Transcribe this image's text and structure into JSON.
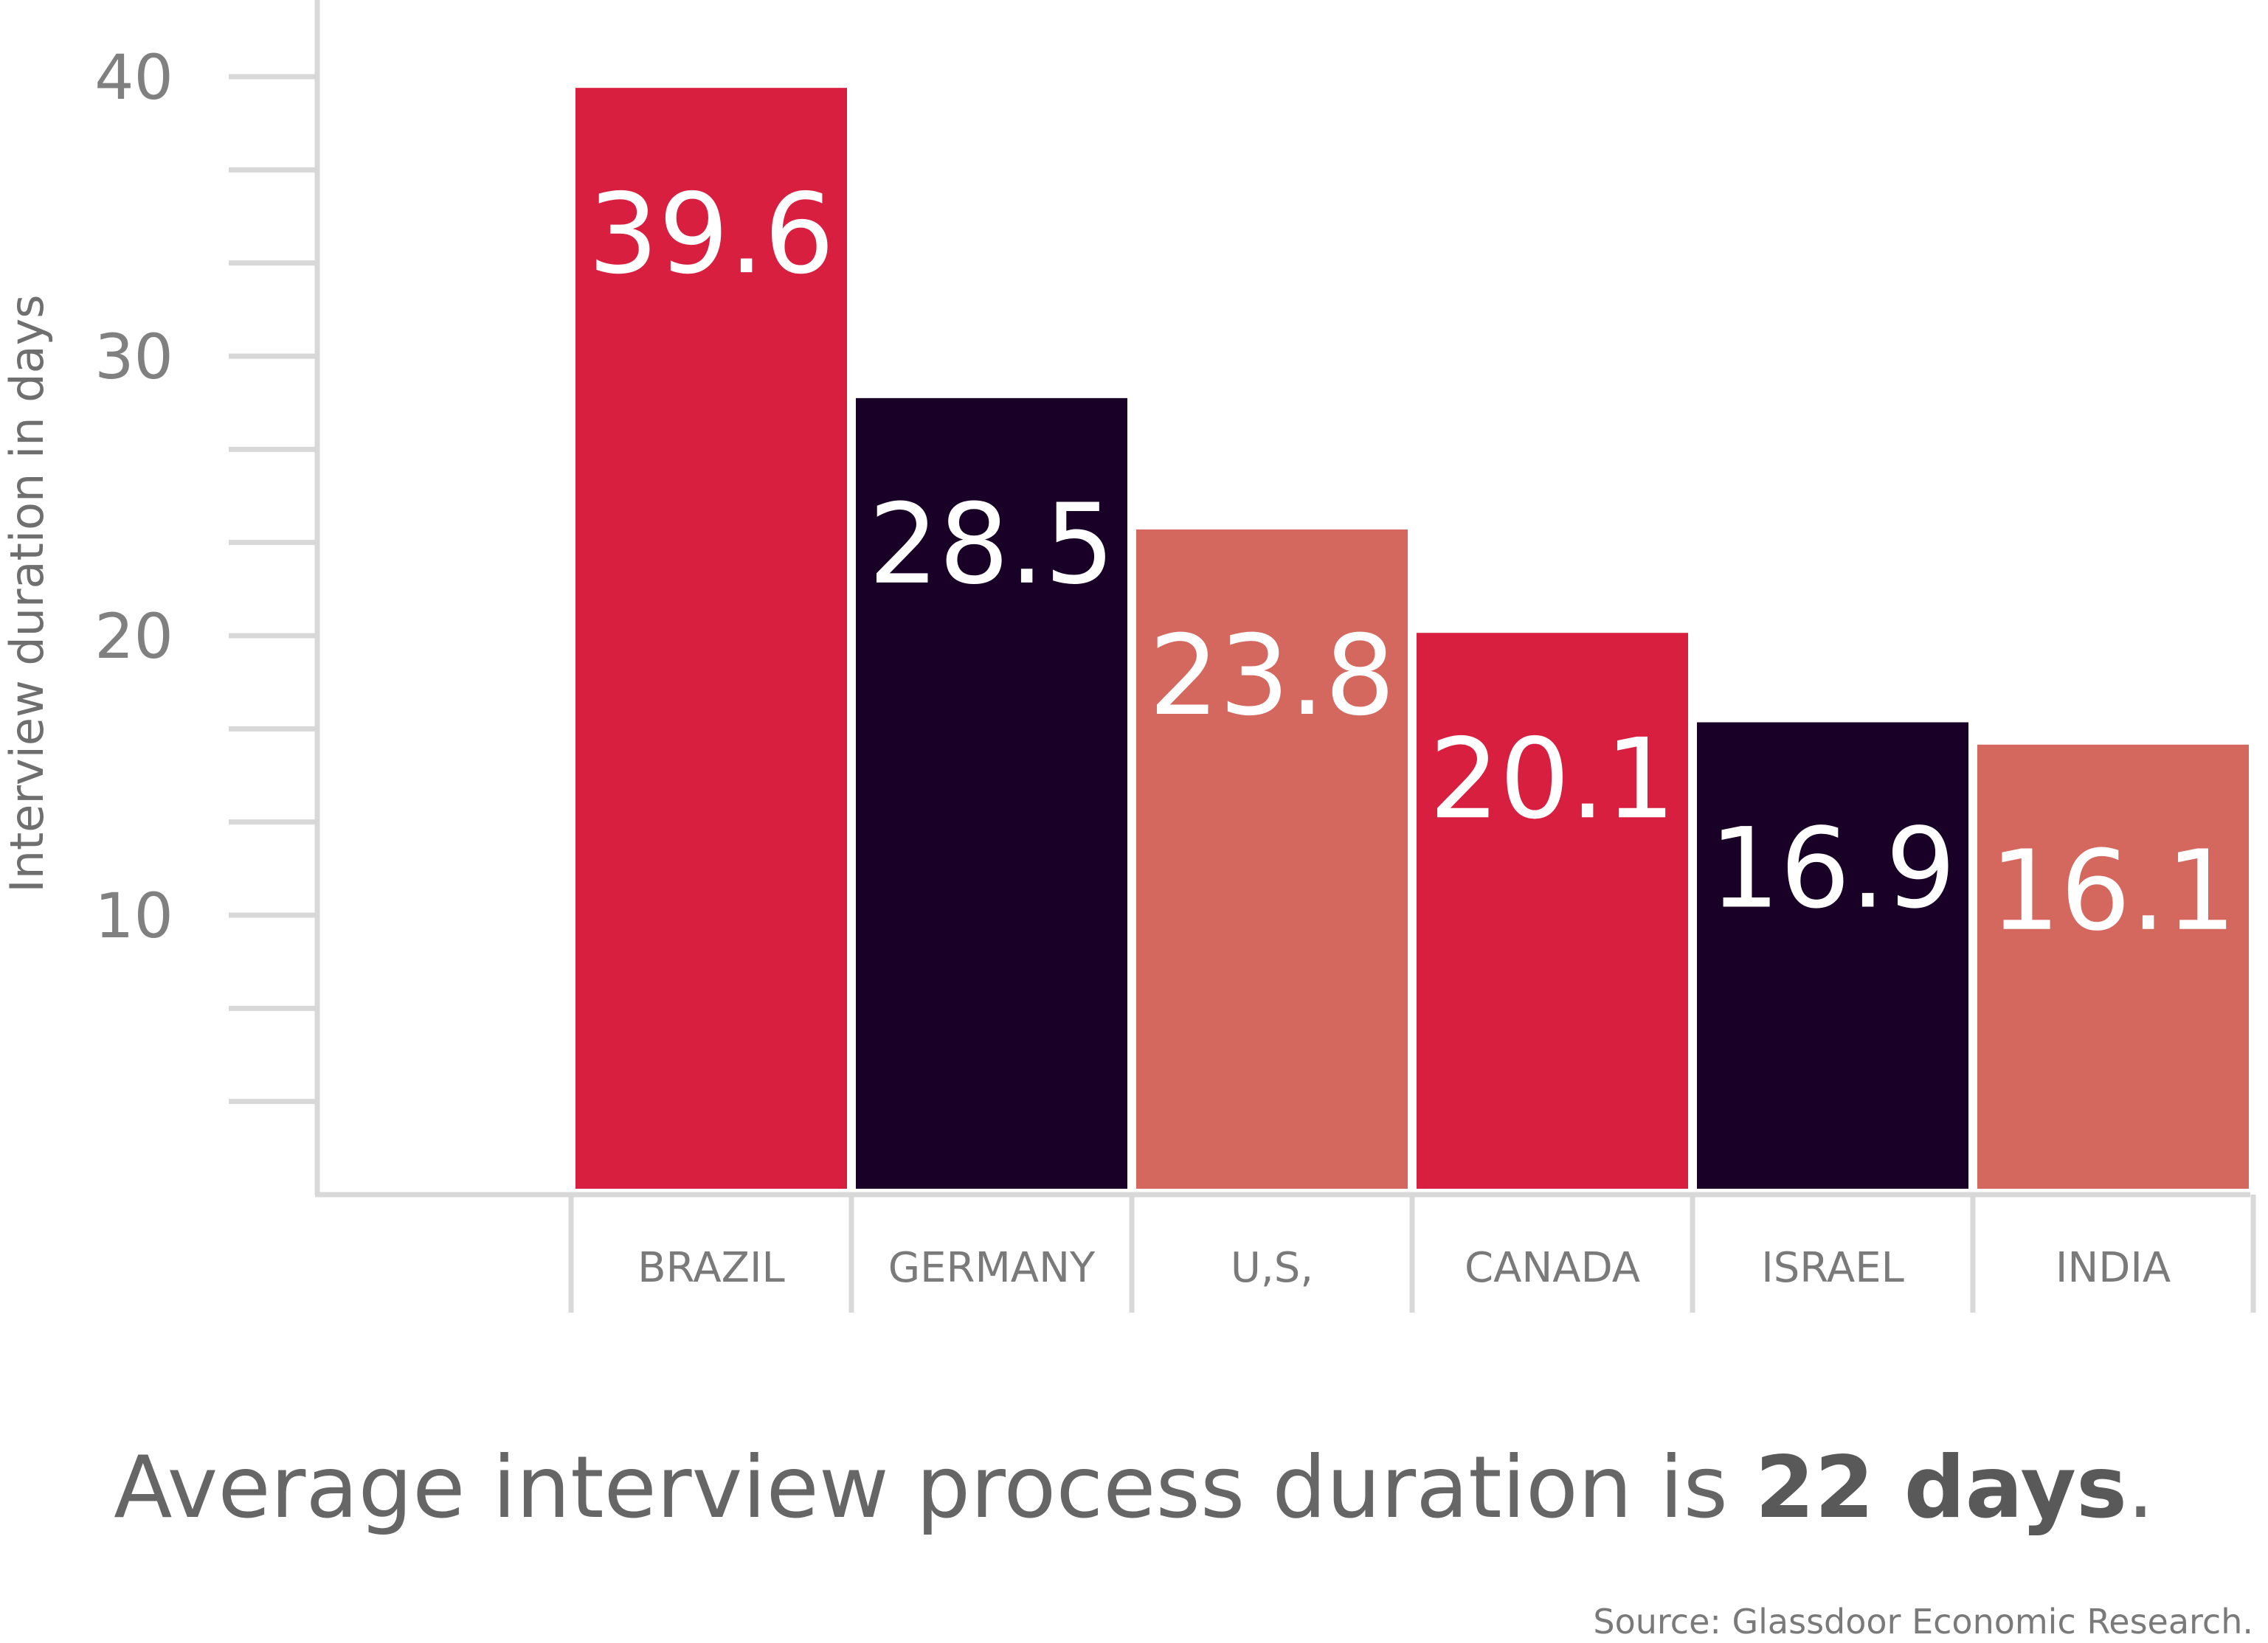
{
  "chart_data": {
    "type": "bar",
    "categories": [
      "BRAZIL",
      "GERMANY",
      "U,S,",
      "CANADA",
      "ISRAEL",
      "INDIA"
    ],
    "values": [
      39.6,
      28.5,
      23.8,
      20.1,
      16.9,
      16.1
    ],
    "value_labels": [
      "39.6",
      "28.5",
      "23.8",
      "20.1",
      "16.9",
      "16.1"
    ],
    "colors": [
      "#d91f3f",
      "#180026",
      "#d4685f",
      "#d91f3f",
      "#180026",
      "#d4685f"
    ],
    "ylabel": "Interview duration in days",
    "yticks": [
      10,
      20,
      30,
      40
    ],
    "ylim": [
      0,
      43
    ],
    "grid": false
  },
  "caption": {
    "prefix": "Average interview process duration is ",
    "highlight": "22 days",
    "suffix": "."
  },
  "source": "Source: Glassdoor Economic Research."
}
